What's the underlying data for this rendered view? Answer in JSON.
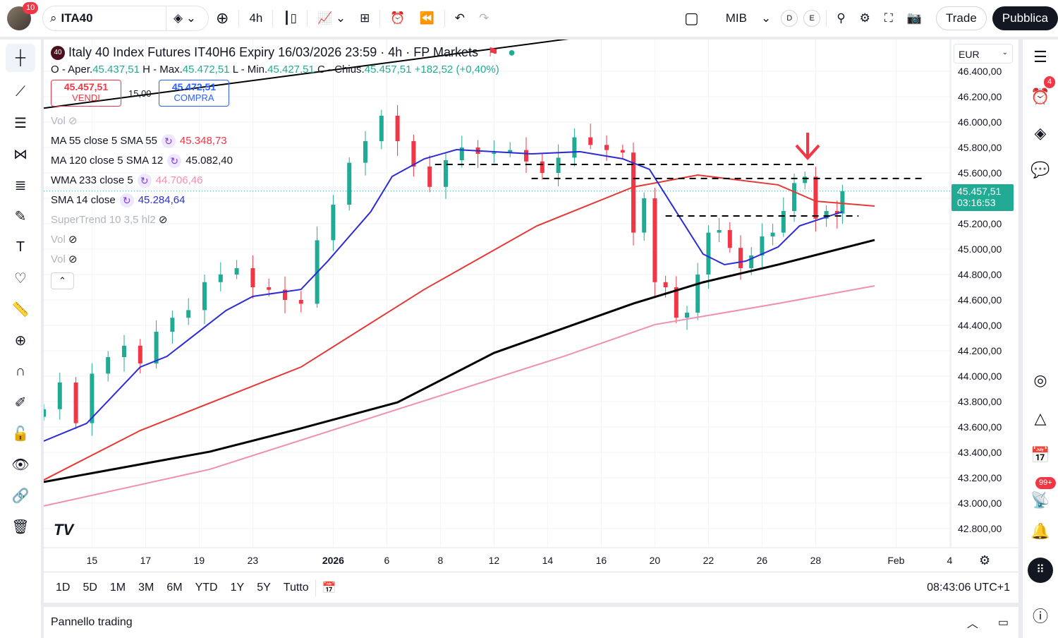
{
  "toolbar": {
    "notifications": "10",
    "symbol": "ITA40",
    "interval": "4h",
    "exchange": "MIB",
    "d_label": "D",
    "e_label": "E",
    "trade": "Trade",
    "publish": "Pubblica"
  },
  "header": {
    "badge": "40",
    "title": "Italy 40 Index Futures IT40H6 Expiry 16/03/2026 23:59 · 4h · FP Markets",
    "o_label": "O - Aper.",
    "o": "45.437,51",
    "h_label": "H - Max.",
    "h": "45.472,51",
    "l_label": "L - Min.",
    "l": "45.427,51",
    "c_label": "C - Chius.",
    "c": "45.457,51",
    "change": "+182,52 (+0,40%)"
  },
  "trade": {
    "sell_price": "45.457,51",
    "sell_label": "VENDI",
    "spread": "15,00",
    "buy_price": "45.472,51",
    "buy_label": "COMPRA"
  },
  "indicators": [
    {
      "name": "Vol",
      "value": ""
    },
    {
      "name": "MA 55 close 5 SMA 55",
      "value": "45.348,73",
      "color": "#f23645"
    },
    {
      "name": "MA 120 close 5 SMA 12",
      "value": "45.082,40",
      "color": "#131722"
    },
    {
      "name": "WMA 233 close 5",
      "value": "44.706,46",
      "color": "#f48fb1"
    },
    {
      "name": "SMA 14 close",
      "value": "45.284,64",
      "color": "#3030d0"
    },
    {
      "name": "SuperTrend 10 3,5 hl2",
      "value": ""
    },
    {
      "name": "Vol",
      "value": ""
    },
    {
      "name": "Vol",
      "value": ""
    }
  ],
  "price_axis": {
    "currency": "EUR",
    "current_price": "45.457,51",
    "countdown": "03:16:53"
  },
  "bottom": {
    "ranges": [
      "1D",
      "5D",
      "1M",
      "3M",
      "6M",
      "YTD",
      "1Y",
      "5Y",
      "Tutto"
    ],
    "clock": "08:43:06 UTC+1"
  },
  "panel": {
    "title": "Pannello trading"
  },
  "right_sidebar": {
    "alerts_badge": "4",
    "notif_badge": "99+"
  },
  "chart_data": {
    "type": "candlestick",
    "ylim": [
      42700,
      46500
    ],
    "y_ticks": [
      "46.400,00",
      "46.200,00",
      "46.000,00",
      "45.800,00",
      "45.600,00",
      "45.400,00",
      "45.200,00",
      "45.000,00",
      "44.800,00",
      "44.600,00",
      "44.400,00",
      "44.200,00",
      "44.000,00",
      "43.800,00",
      "43.600,00",
      "43.400,00",
      "43.200,00",
      "43.000,00",
      "42.800,00"
    ],
    "y_tick_values": [
      46400,
      46200,
      46000,
      45800,
      45600,
      45400,
      45200,
      45000,
      44800,
      44600,
      44400,
      44200,
      44000,
      43800,
      43600,
      43400,
      43200,
      43000,
      42800
    ],
    "x_range": [
      0,
      169
    ],
    "x_ticks": [
      {
        "t": 9,
        "label": "15"
      },
      {
        "t": 19,
        "label": "17"
      },
      {
        "t": 29,
        "label": "19"
      },
      {
        "t": 39,
        "label": "23"
      },
      {
        "t": 54,
        "label": "2026",
        "bold": true
      },
      {
        "t": 64,
        "label": "6"
      },
      {
        "t": 74,
        "label": "8"
      },
      {
        "t": 84,
        "label": "12"
      },
      {
        "t": 94,
        "label": "14"
      },
      {
        "t": 104,
        "label": "16"
      },
      {
        "t": 114,
        "label": "20"
      },
      {
        "t": 124,
        "label": "22"
      },
      {
        "t": 134,
        "label": "26"
      },
      {
        "t": 144,
        "label": "28"
      },
      {
        "t": 159,
        "label": "Feb"
      },
      {
        "t": 169,
        "label": "4"
      }
    ],
    "candles_t": [
      0,
      3,
      6,
      9,
      12,
      15,
      18,
      21,
      24,
      27,
      30,
      33,
      36,
      39,
      42,
      45,
      48,
      51,
      54,
      57,
      60,
      63,
      66,
      69,
      72,
      75,
      78,
      81,
      84,
      87,
      90,
      93,
      96,
      99,
      102,
      105,
      108,
      110,
      112,
      114,
      116,
      118,
      120,
      122,
      124,
      126,
      128,
      130,
      132,
      134,
      136,
      138,
      140,
      142,
      144,
      146,
      148,
      149
    ],
    "candles_close": [
      43740,
      43950,
      43630,
      44020,
      44150,
      44240,
      44100,
      44350,
      44460,
      44520,
      44740,
      44800,
      44850,
      44700,
      44680,
      44600,
      44570,
      45070,
      45350,
      45680,
      45850,
      46050,
      45850,
      45650,
      45490,
      45700,
      45800,
      45750,
      45760,
      45780,
      45690,
      45600,
      45720,
      45880,
      45820,
      45780,
      45760,
      45130,
      45400,
      44740,
      44700,
      44460,
      44500,
      44800,
      45130,
      45150,
      45010,
      44850,
      44950,
      45100,
      45130,
      45300,
      45520,
      45570,
      45240,
      45300,
      45280,
      45457
    ],
    "series": [
      {
        "name": "MA 55",
        "color": "#e53935",
        "points": [
          [
            0,
            43183
          ],
          [
            18,
            43572
          ],
          [
            48,
            44072
          ],
          [
            71,
            44683
          ],
          [
            92,
            45183
          ],
          [
            110,
            45489
          ],
          [
            122,
            45583
          ],
          [
            137,
            45506
          ],
          [
            144,
            45378
          ],
          [
            155,
            45339
          ]
        ]
      },
      {
        "name": "MA 120",
        "color": "#000000",
        "points": [
          [
            0,
            43167
          ],
          [
            31,
            43406
          ],
          [
            48,
            43589
          ],
          [
            66,
            43794
          ],
          [
            84,
            44183
          ],
          [
            110,
            44572
          ],
          [
            123,
            44739
          ],
          [
            137,
            44878
          ],
          [
            155,
            45072
          ]
        ]
      },
      {
        "name": "WMA 233",
        "color": "#f08fb0",
        "points": [
          [
            0,
            42978
          ],
          [
            31,
            43267
          ],
          [
            66,
            43739
          ],
          [
            97,
            44156
          ],
          [
            114,
            44406
          ],
          [
            137,
            44572
          ],
          [
            155,
            44711
          ]
        ]
      },
      {
        "name": "SMA 14",
        "color": "#2c2cd6",
        "points": [
          [
            0,
            43489
          ],
          [
            8,
            43628
          ],
          [
            18,
            44072
          ],
          [
            23,
            44156
          ],
          [
            34,
            44517
          ],
          [
            39,
            44628
          ],
          [
            48,
            44683
          ],
          [
            53,
            44906
          ],
          [
            61,
            45294
          ],
          [
            65,
            45572
          ],
          [
            71,
            45711
          ],
          [
            77,
            45783
          ],
          [
            91,
            45750
          ],
          [
            100,
            45767
          ],
          [
            108,
            45711
          ],
          [
            113,
            45628
          ],
          [
            118,
            45294
          ],
          [
            123,
            44961
          ],
          [
            127,
            44878
          ],
          [
            131,
            44906
          ],
          [
            137,
            45017
          ],
          [
            141,
            45183
          ],
          [
            145,
            45239
          ],
          [
            149,
            45294
          ]
        ]
      }
    ],
    "levels": [
      {
        "price": 45667,
        "from": 73,
        "to": 144
      },
      {
        "price": 45556,
        "from": 91,
        "to": 164
      },
      {
        "price": 45261,
        "from": 116,
        "to": 152
      }
    ],
    "trendline": [
      [
        0,
        46110
      ],
      [
        123,
        46795
      ]
    ]
  }
}
